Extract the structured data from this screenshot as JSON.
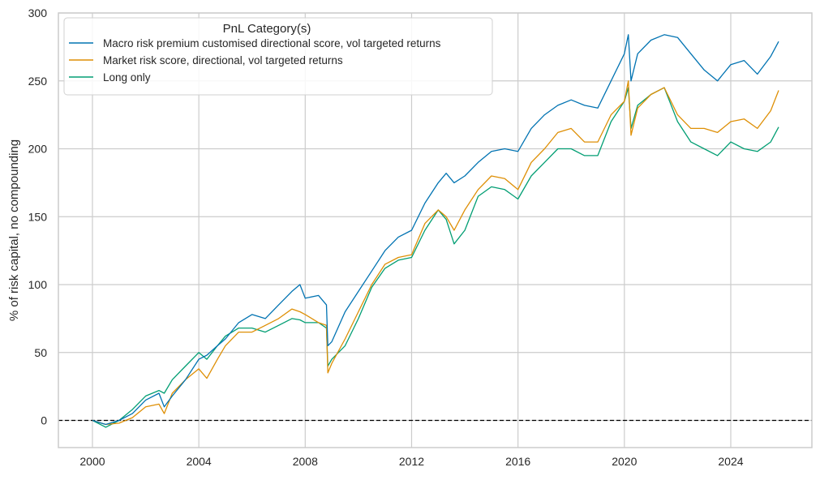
{
  "chart_data": {
    "type": "line",
    "title": "",
    "xlabel": "",
    "ylabel": "% of risk capital, no compounding",
    "xlim": [
      1998.72,
      2027.05
    ],
    "ylim": [
      -20,
      300
    ],
    "x_ticks": [
      2000,
      2004,
      2008,
      2012,
      2016,
      2020,
      2024
    ],
    "y_ticks": [
      0,
      50,
      100,
      150,
      200,
      250,
      300
    ],
    "grid": true,
    "reference_line": {
      "y": 0,
      "style": "dashed",
      "color": "#000000"
    },
    "legend": {
      "title": "PnL Category(s)",
      "placement": "top-left"
    },
    "x": [
      2000,
      2000.5,
      2001,
      2001.5,
      2002,
      2002.5,
      2002.7,
      2003,
      2003.5,
      2004,
      2004.3,
      2004.7,
      2005,
      2005.5,
      2006,
      2006.5,
      2007,
      2007.5,
      2007.8,
      2008,
      2008.5,
      2008.8,
      2008.85,
      2009,
      2009.5,
      2010,
      2010.5,
      2011,
      2011.5,
      2012,
      2012.5,
      2013,
      2013.3,
      2013.6,
      2014,
      2014.5,
      2015,
      2015.5,
      2016,
      2016.5,
      2017,
      2017.5,
      2018,
      2018.5,
      2019,
      2019.5,
      2020,
      2020.15,
      2020.25,
      2020.5,
      2021,
      2021.5,
      2022,
      2022.5,
      2023,
      2023.5,
      2024,
      2024.5,
      2025,
      2025.5,
      2025.8
    ],
    "series": [
      {
        "name": "Macro risk premium customised directional score, vol targeted returns",
        "color": "#0173b2",
        "values": [
          0,
          -3,
          0,
          5,
          15,
          20,
          10,
          18,
          30,
          45,
          48,
          55,
          60,
          72,
          78,
          75,
          85,
          95,
          100,
          90,
          92,
          85,
          55,
          58,
          80,
          95,
          110,
          125,
          135,
          140,
          160,
          175,
          182,
          175,
          180,
          190,
          198,
          200,
          198,
          215,
          225,
          232,
          236,
          232,
          230,
          250,
          270,
          284,
          250,
          270,
          280,
          284,
          282,
          270,
          258,
          250,
          262,
          265,
          255,
          268,
          279
        ]
      },
      {
        "name": "Market risk score, directional, vol targeted returns",
        "color": "#de8f05",
        "values": [
          0,
          -3,
          -2,
          2,
          10,
          12,
          5,
          20,
          30,
          38,
          31,
          45,
          55,
          65,
          65,
          70,
          75,
          82,
          80,
          78,
          72,
          70,
          35,
          42,
          60,
          80,
          100,
          115,
          120,
          122,
          145,
          155,
          150,
          140,
          155,
          170,
          180,
          178,
          170,
          190,
          200,
          212,
          215,
          205,
          205,
          225,
          235,
          250,
          210,
          230,
          240,
          245,
          225,
          215,
          215,
          212,
          220,
          222,
          215,
          228,
          243
        ]
      },
      {
        "name": "Long only",
        "color": "#029e73",
        "values": [
          0,
          -5,
          0,
          8,
          18,
          22,
          20,
          30,
          40,
          50,
          45,
          55,
          62,
          68,
          68,
          65,
          70,
          75,
          74,
          72,
          72,
          68,
          40,
          45,
          55,
          75,
          98,
          112,
          118,
          120,
          140,
          155,
          148,
          130,
          140,
          165,
          172,
          170,
          163,
          180,
          190,
          200,
          200,
          195,
          195,
          220,
          235,
          245,
          215,
          232,
          240,
          245,
          220,
          205,
          200,
          195,
          205,
          200,
          198,
          205,
          216
        ]
      }
    ]
  }
}
